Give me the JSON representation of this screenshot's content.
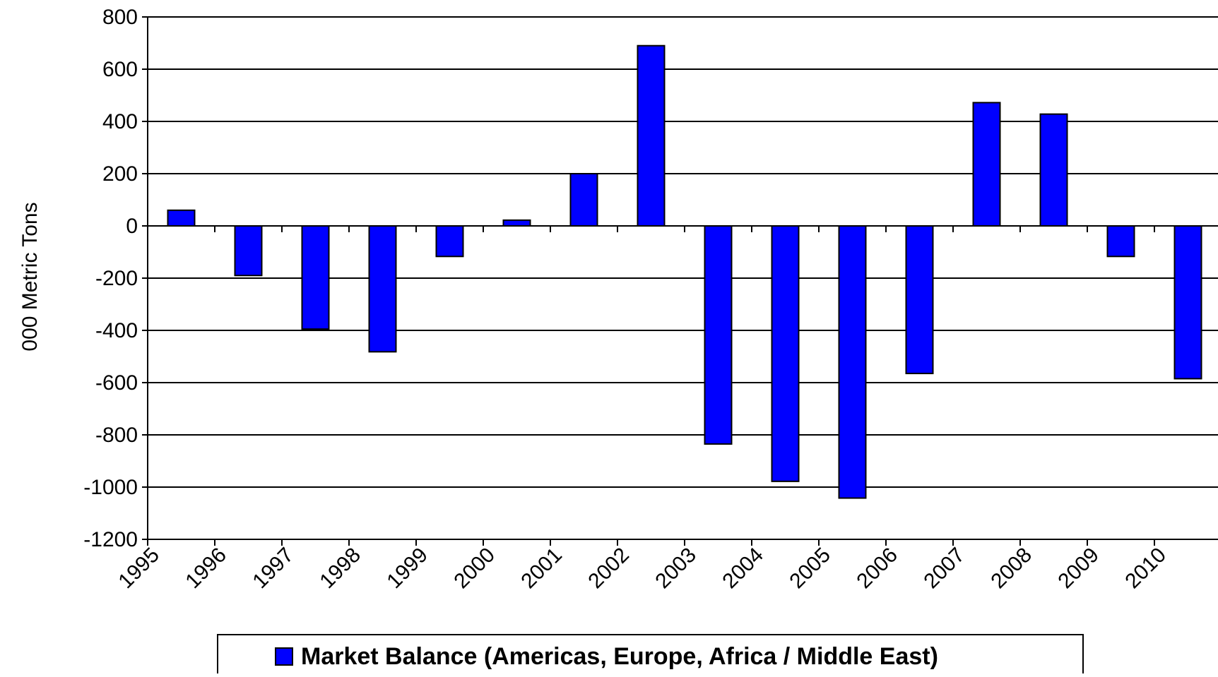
{
  "chart_data": {
    "type": "bar",
    "title": "",
    "xlabel": "",
    "ylabel": "000 Metric Tons",
    "categories": [
      "1995",
      "1996",
      "1997",
      "1998",
      "1999",
      "2000",
      "2001",
      "2002",
      "2003",
      "2004",
      "2005",
      "2006",
      "2007",
      "2008",
      "2009",
      "2010"
    ],
    "series": [
      {
        "name": "Market Balance (Americas, Europe, Africa / Middle East)",
        "values": [
          60,
          -190,
          -395,
          -482,
          -117,
          22,
          200,
          690,
          -835,
          -978,
          -1042,
          -565,
          472,
          428,
          -117,
          -585
        ],
        "color": "#0000ff"
      }
    ],
    "ylim": [
      -1200,
      800
    ],
    "yticks": [
      800,
      600,
      400,
      200,
      0,
      -200,
      -400,
      -600,
      -800,
      -1000,
      -1200
    ],
    "grid": true,
    "legend_position": "bottom",
    "colors": {
      "bar": "#0000ff",
      "bar_stroke": "#000000",
      "grid": "#000000",
      "background": "#ffffff"
    }
  }
}
